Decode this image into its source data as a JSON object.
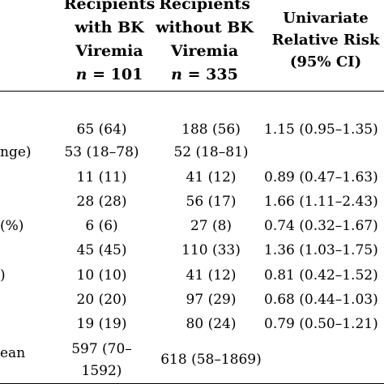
{
  "headers": {
    "col1": {
      "lines": [
        "Recipients",
        "with BK",
        "Viremia"
      ],
      "n_label": "n",
      "n_value": " = 101"
    },
    "col2": {
      "lines": [
        "Recipients",
        "without BK",
        "Viremia"
      ],
      "n_label": "n",
      "n_value": " = 335"
    },
    "col3": {
      "lines": [
        "Univariate",
        "Relative Risk",
        "(95% CI)"
      ]
    }
  },
  "rows": [
    {
      "label": "",
      "col1": "65 (64)",
      "col2": "188 (56)",
      "col3": "1.15 (0.95–1.35)"
    },
    {
      "label": "nge)",
      "col1": "53 (18–78)",
      "col2": "52 (18–81)",
      "col3": ""
    },
    {
      "label": "",
      "col1": "11 (11)",
      "col2": "41 (12)",
      "col3": "0.89 (0.47–1.63)"
    },
    {
      "label": "",
      "col1": "28 (28)",
      "col2": "56 (17)",
      "col3": "1.66 (1.11–2.43)"
    },
    {
      "label": "(%)",
      "col1": "6 (6)",
      "col2": "27 (8)",
      "col3": "0.74 (0.32–1.67)"
    },
    {
      "label": "",
      "col1": "45 (45)",
      "col2": "110 (33)",
      "col3": "1.36 (1.03–1.75)"
    },
    {
      "label": ")",
      "col1": "10 (10)",
      "col2": "41 (12)",
      "col3": "0.81 (0.42–1.52)"
    },
    {
      "label": "",
      "col1": "20 (20)",
      "col2": "97 (29)",
      "col3": "0.68 (0.44–1.03)"
    },
    {
      "label": "",
      "col1": "19 (19)",
      "col2": "80 (24)",
      "col3": "0.79 (0.50–1.21)"
    }
  ],
  "last_row": {
    "label": "ean",
    "col1_line1": "597 (70–",
    "col1_line2": "1592)",
    "col2": "618 (58–1869)",
    "col3": ""
  }
}
